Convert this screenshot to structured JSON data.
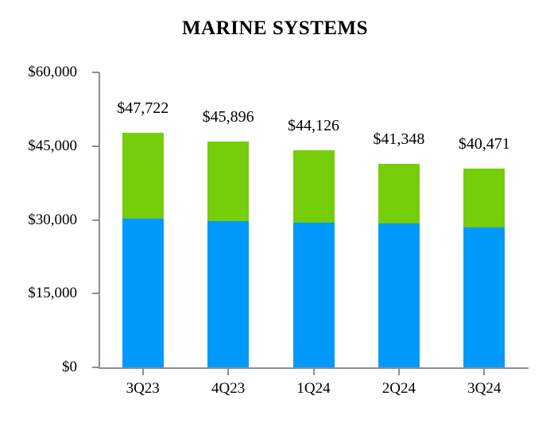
{
  "title": "MARINE SYSTEMS",
  "colors": {
    "bar_blue": "#0099FC",
    "bar_green": "#76CD0A",
    "axis": "#8e8e8e",
    "text": "#000000",
    "background": "#ffffff"
  },
  "chart_data": {
    "type": "bar",
    "subtype": "stacked",
    "title": "MARINE SYSTEMS",
    "categories": [
      "3Q23",
      "4Q23",
      "1Q24",
      "2Q24",
      "3Q24"
    ],
    "totals": [
      47722,
      45896,
      44126,
      41348,
      40471
    ],
    "total_labels": [
      "$47,722",
      "$45,896",
      "$44,126",
      "$41,348",
      "$40,471"
    ],
    "series": [
      {
        "name": "bottom-blue-segment",
        "color": "#0099FC",
        "values": [
          30200,
          29700,
          29500,
          29200,
          28500
        ],
        "note": "values estimated from pixel heights (not labeled in chart)"
      },
      {
        "name": "top-green-segment",
        "color": "#76CD0A",
        "values": [
          17522,
          16196,
          14626,
          12148,
          11971
        ],
        "note": "total minus blue segment estimate"
      }
    ],
    "xlabel": "",
    "ylabel": "",
    "y_ticks": [
      0,
      15000,
      30000,
      45000,
      60000
    ],
    "y_tick_labels": [
      "$0",
      "$15,000",
      "$30,000",
      "$45,000",
      "$60,000"
    ],
    "ylim": [
      0,
      60000
    ],
    "grid": false,
    "legend": "none",
    "data_label_format": "$#,###"
  }
}
